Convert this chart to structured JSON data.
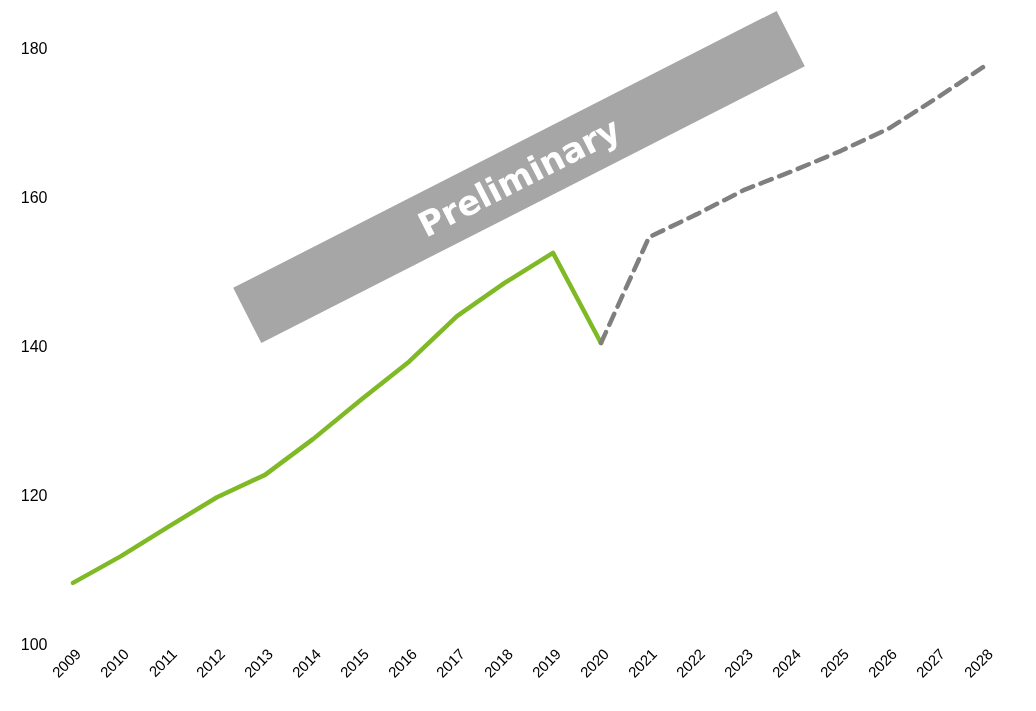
{
  "chart_data": {
    "type": "line",
    "categories": [
      "2009",
      "2010",
      "2011",
      "2012",
      "2013",
      "2014",
      "2015",
      "2016",
      "2017",
      "2018",
      "2019",
      "2020",
      "2021",
      "2022",
      "2023",
      "2024",
      "2025",
      "2026",
      "2027",
      "2028"
    ],
    "series": [
      {
        "color": "#7fba26",
        "line_style": "solid",
        "values": [
          108.2,
          111.8,
          115.8,
          119.7,
          122.7,
          127.5,
          132.8,
          137.9,
          144.0,
          148.5,
          152.5,
          140.4,
          null,
          null,
          null,
          null,
          null,
          null,
          null,
          null
        ]
      },
      {
        "color": "#7f7f7f",
        "line_style": "dashed",
        "values": [
          null,
          null,
          null,
          null,
          null,
          null,
          null,
          null,
          null,
          null,
          null,
          140.4,
          154.6,
          157.7,
          161.0,
          163.5,
          166.2,
          169.2,
          173.3,
          177.6
        ]
      }
    ],
    "ylim": [
      100,
      180
    ],
    "yticks": [
      100,
      120,
      140,
      160,
      180
    ],
    "grid": false,
    "legend": false,
    "marker": "none",
    "annotations": [
      "Preliminary"
    ]
  }
}
